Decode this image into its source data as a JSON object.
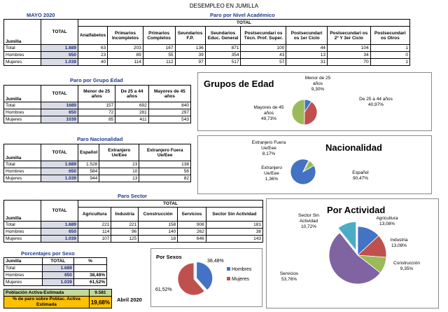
{
  "page_title": "DESEMPLEO EN JUMILLA",
  "period": "MAYO 2020",
  "academic": {
    "title": "Paro por Nivel Académico",
    "total_label": "TOTAL",
    "row_header": "Jumilla",
    "total_header": "TOTAL",
    "cols": [
      "Analfabetos",
      "Primarios Incompletos",
      "Primarios Completos",
      "Seundarios F.P.",
      "Seundarios Educ. General",
      "Postsecundari os Técn. Prof. Super.",
      "Postsecundari os 1er Ciclo",
      "Postsecundari os 2º Y 3er Ciclo",
      "Postsecundari os Otros"
    ],
    "rows": [
      {
        "label": "Total",
        "total": "1.689",
        "vals": [
          "63",
          "203",
          "167",
          "136",
          "871",
          "100",
          "44",
          "104",
          "1"
        ]
      },
      {
        "label": "Hombres",
        "total": "650",
        "vals": [
          "23",
          "89",
          "55",
          "39",
          "354",
          "43",
          "13",
          "34",
          "0"
        ]
      },
      {
        "label": "Mujeres",
        "total": "1.039",
        "vals": [
          "40",
          "114",
          "112",
          "97",
          "517",
          "57",
          "31",
          "70",
          "1"
        ]
      }
    ]
  },
  "age": {
    "title": "Paro por Grupo Edad",
    "row_header": "Jumilla",
    "total_header": "TOTAL",
    "cols": [
      "Menor de 25 años",
      "De 25 a 44 años",
      "Mayores de 45 años"
    ],
    "rows": [
      {
        "label": "Total",
        "total": "1689",
        "vals": [
          "157",
          "692",
          "840"
        ]
      },
      {
        "label": "Hombres",
        "total": "650",
        "vals": [
          "72",
          "281",
          "297"
        ]
      },
      {
        "label": "Mujeres",
        "total": "1039",
        "vals": [
          "85",
          "411",
          "543"
        ]
      }
    ]
  },
  "nat": {
    "title": "Paro Nacionalidad",
    "row_header": "Jumilla",
    "total_header": "TOTAL",
    "cols": [
      "Español",
      "Extranjero Ue/Eee",
      "Extranjero Fuera Ue/Eee"
    ],
    "rows": [
      {
        "label": "Total",
        "total": "1.689",
        "vals": [
          "1.528",
          "23",
          "138"
        ]
      },
      {
        "label": "Hombres",
        "total": "650",
        "vals": [
          "584",
          "10",
          "56"
        ]
      },
      {
        "label": "Mujeres",
        "total": "1.039",
        "vals": [
          "944",
          "13",
          "82"
        ]
      }
    ]
  },
  "sector": {
    "title": "Paro Sector",
    "row_header": "Jumilla",
    "total_header": "TOTAL",
    "total_label": "TOTAL",
    "cols": [
      "Agricultura",
      "Industria",
      "Construcción",
      "Servicios",
      "Sector Sin Actividad"
    ],
    "rows": [
      {
        "label": "Total",
        "total": "1.689",
        "vals": [
          "221",
          "221",
          "158",
          "908",
          "181"
        ]
      },
      {
        "label": "Hombres",
        "total": "650",
        "vals": [
          "114",
          "96",
          "140",
          "262",
          "38"
        ]
      },
      {
        "label": "Mujeres",
        "total": "1.039",
        "vals": [
          "107",
          "125",
          "18",
          "646",
          "143"
        ]
      }
    ]
  },
  "pct": {
    "title": "Porcentajes por Sexo",
    "h1": "Jumilla",
    "h2": "TOTAL",
    "h3": "%",
    "rows": [
      {
        "label": "Total",
        "total": "1.689",
        "pct": ""
      },
      {
        "label": "Hombres",
        "total": "650",
        "pct": "38,48%"
      },
      {
        "label": "Mujeres",
        "total": "1.039",
        "pct": "61,52%"
      }
    ]
  },
  "summary": {
    "active_label": "Población Activa-Estimada",
    "active_value": "9.581",
    "rate_label": "% de paro sobre Poblac. Activa Estimada",
    "rate_value": "19,68%",
    "ref": "Abril 2020"
  },
  "colors": {
    "blue": "#4472c4",
    "red": "#c0504d",
    "green": "#9bbb59",
    "purple": "#8064a2",
    "cyan": "#4bacc6",
    "yellow": "#ffc000"
  },
  "chart_data": [
    {
      "type": "pie",
      "title": "Grupos de Edad",
      "labels": [
        "Menor de 25 años",
        "De 25 a 44 años",
        "Mayores de 45 años"
      ],
      "values": [
        9.3,
        40.97,
        49.73
      ],
      "value_labels": [
        "9,30%",
        "40,97%",
        "49,73%"
      ]
    },
    {
      "type": "pie",
      "title": "Nacionalidad",
      "labels": [
        "Español",
        "Extranjero Ue/Eee",
        "Extranjero Fuera Ue/Eee"
      ],
      "values": [
        90.47,
        1.36,
        8.17
      ],
      "value_labels": [
        "90,47%",
        "1,36%",
        "8,17%"
      ]
    },
    {
      "type": "pie",
      "title": "Por Actividad",
      "labels": [
        "Agricultura",
        "Industria",
        "Construcción",
        "Servicios",
        "Sector Sin Actividad"
      ],
      "values": [
        13.08,
        13.08,
        9.35,
        53.76,
        10.72
      ],
      "value_labels": [
        "13,08%",
        "13,08%",
        "9,35%",
        "53,76%",
        "10,72%"
      ]
    },
    {
      "type": "pie",
      "title": "Por Sexos",
      "labels": [
        "Hombres",
        "Mujeres"
      ],
      "values": [
        38.48,
        61.52
      ],
      "value_labels": [
        "38,48%",
        "61,52%"
      ]
    }
  ]
}
